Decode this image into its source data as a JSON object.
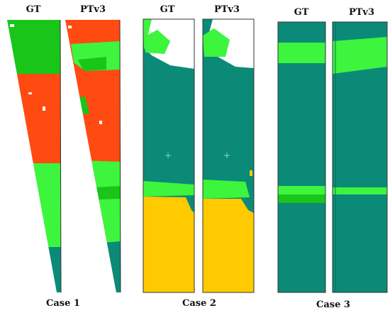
{
  "colors": {
    "teal": "#0b8a78",
    "green_dark": "#19c519",
    "green_light": "#3df53d",
    "red": "#ff4a12",
    "yellow": "#ffca00",
    "white": "#ffffff"
  },
  "cases": [
    {
      "name": "Case 1",
      "columns": [
        "GT",
        "PTv3"
      ]
    },
    {
      "name": "Case 2",
      "columns": [
        "GT",
        "PTv3"
      ]
    },
    {
      "name": "Case 3",
      "columns": [
        "GT",
        "PTv3"
      ]
    }
  ]
}
